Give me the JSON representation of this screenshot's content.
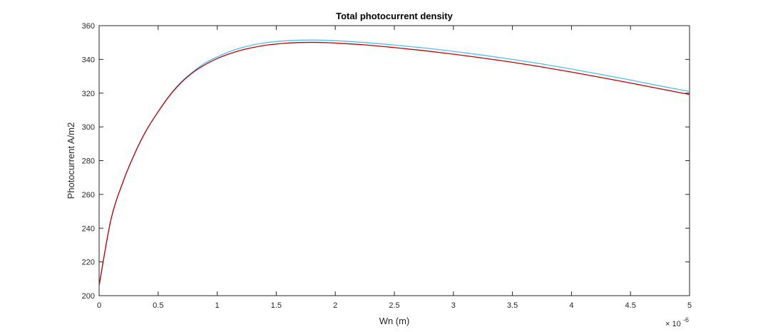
{
  "chart_data": {
    "type": "line",
    "title": "Total photocurrent density",
    "xlabel": "Wn (m)",
    "ylabel": "Photocurrent A/m2",
    "x_exponent_label": "× 10",
    "x_exponent_power": "-6",
    "x_multiplier": 1e-06,
    "xlim": [
      0,
      5
    ],
    "ylim": [
      200,
      360
    ],
    "xticks": [
      0,
      0.5,
      1,
      1.5,
      2,
      2.5,
      3,
      3.5,
      4,
      4.5,
      5
    ],
    "xtick_labels": [
      "0",
      "0.5",
      "1",
      "1.5",
      "2",
      "2.5",
      "3",
      "3.5",
      "4",
      "4.5",
      "5"
    ],
    "yticks": [
      200,
      220,
      240,
      260,
      280,
      300,
      320,
      340,
      360
    ],
    "ytick_labels": [
      "200",
      "220",
      "240",
      "260",
      "280",
      "300",
      "320",
      "340",
      "360"
    ],
    "grid": false,
    "legend": false,
    "series": [
      {
        "color": "#4DBEEE",
        "x": [
          0,
          0.1,
          0.2,
          0.3,
          0.4,
          0.5,
          0.6,
          0.7,
          0.8,
          0.9,
          1.0,
          1.1,
          1.2,
          1.3,
          1.4,
          1.5,
          1.6,
          1.7,
          1.8,
          1.9,
          2.0,
          2.25,
          2.5,
          2.75,
          3.0,
          3.25,
          3.5,
          3.75,
          4.0,
          4.25,
          4.5,
          4.75,
          5.0
        ],
        "y": [
          206,
          245,
          267,
          284,
          298,
          309,
          319,
          327,
          333,
          338,
          341.5,
          344.5,
          346.8,
          348.5,
          349.8,
          350.6,
          351.1,
          351.4,
          351.5,
          351.4,
          351.1,
          350.0,
          348.5,
          346.8,
          344.8,
          342.5,
          340.0,
          337.3,
          334.3,
          331.1,
          327.8,
          324.3,
          321.0
        ]
      },
      {
        "color": "#C00000",
        "x": [
          0,
          0.1,
          0.2,
          0.3,
          0.4,
          0.5,
          0.6,
          0.7,
          0.8,
          0.9,
          1.0,
          1.1,
          1.2,
          1.3,
          1.4,
          1.5,
          1.6,
          1.7,
          1.8,
          1.9,
          2.0,
          2.25,
          2.5,
          2.75,
          3.0,
          3.25,
          3.5,
          3.75,
          4.0,
          4.25,
          4.5,
          4.75,
          5.0
        ],
        "y": [
          206,
          245,
          267,
          284,
          298,
          309,
          318.8,
          326.6,
          332.5,
          337.0,
          340.5,
          343.2,
          345.4,
          347.0,
          348.3,
          349.1,
          349.7,
          350.0,
          350.1,
          350.0,
          349.7,
          348.6,
          347.0,
          345.2,
          343.1,
          340.8,
          338.3,
          335.5,
          332.5,
          329.3,
          326.0,
          322.6,
          319.2
        ]
      }
    ]
  }
}
